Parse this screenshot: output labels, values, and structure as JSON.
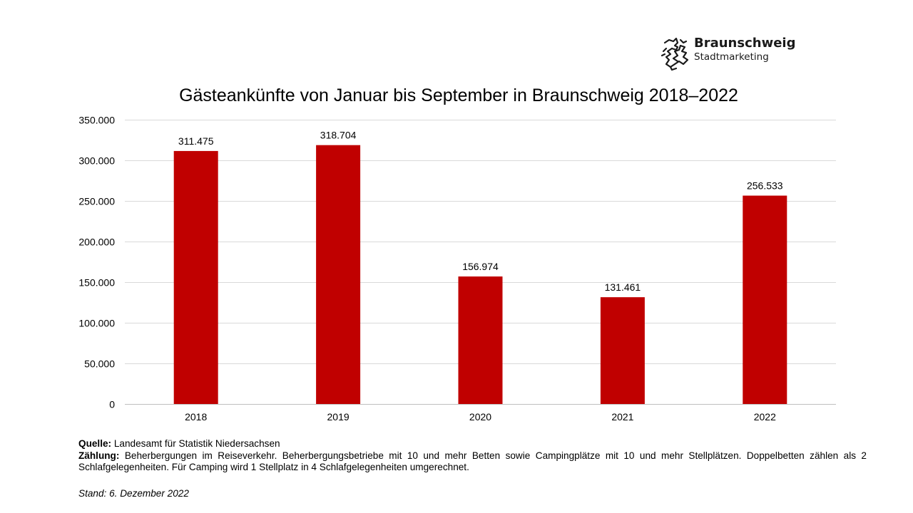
{
  "logo": {
    "name": "Braunschweig",
    "subtitle": "Stadtmarketing"
  },
  "chart_data": {
    "type": "bar",
    "title": "Gästeankünfte von Januar bis September in Braunschweig 2018–2022",
    "categories": [
      "2018",
      "2019",
      "2020",
      "2021",
      "2022"
    ],
    "values": [
      311475,
      318704,
      156974,
      131461,
      256533
    ],
    "data_labels": [
      "311.475",
      "318.704",
      "156.974",
      "131.461",
      "256.533"
    ],
    "ylim": [
      0,
      350000
    ],
    "yticks": [
      0,
      50000,
      100000,
      150000,
      200000,
      250000,
      300000,
      350000
    ],
    "ytick_labels": [
      "0",
      "50.000",
      "100.000",
      "150.000",
      "200.000",
      "250.000",
      "300.000",
      "350.000"
    ],
    "xlabel": "",
    "ylabel": "",
    "grid": true,
    "legend": "none",
    "bar_color": "#c00000"
  },
  "notes": {
    "source_label": "Quelle:",
    "source_text": "Landesamt für Statistik Niedersachsen",
    "count_label": "Zählung:",
    "count_text": "Beherbergungen im Reiseverkehr. Beherbergungsbetriebe mit 10 und mehr Betten sowie Campingplätze mit 10 und mehr Stellplätzen. Doppelbetten zählen als 2 Schlafgelegenheiten. Für Camping wird 1 Stellplatz in 4 Schlafgelegenheiten umgerechnet.",
    "stand": "Stand: 6. Dezember 2022"
  }
}
